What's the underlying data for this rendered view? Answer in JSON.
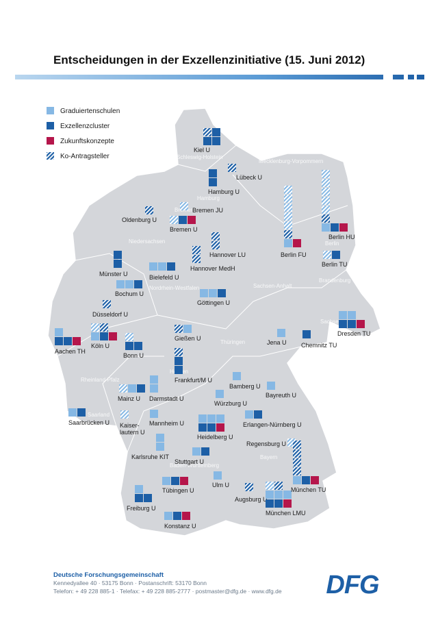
{
  "header": {
    "title": "Entscheidungen in der Exzellenzinitiative (15. Juni 2012)"
  },
  "legend": {
    "items": [
      "Graduiertenschulen",
      "Exzellenzcluster",
      "Zukunftskonzepte",
      "Ko-Antragsteller"
    ]
  },
  "states": [
    "Schleswig-Holstein",
    "Mecklenburg-Vorpommern",
    "Hamburg",
    "Bremen",
    "Niedersachsen",
    "Berlin",
    "Brandenburg",
    "Sachsen-Anhalt",
    "Nordrhein-Westfalen",
    "Hessen",
    "Thüringen",
    "Sachsen",
    "Rheinland-Pfalz",
    "Saarland",
    "Baden-Württemberg",
    "Bayern"
  ],
  "universities": [
    {
      "label": "Kiel U",
      "g": 0,
      "c": 3,
      "z": 0,
      "kg": 0,
      "kc": 1
    },
    {
      "label": "Lübeck U",
      "g": 0,
      "c": 0,
      "z": 0,
      "kg": 0,
      "kc": 1
    },
    {
      "label": "Hamburg U",
      "g": 0,
      "c": 2,
      "z": 0,
      "kg": 0,
      "kc": 0
    },
    {
      "label": "Bremen JU",
      "g": 0,
      "c": 0,
      "z": 0,
      "kg": 1,
      "kc": 0
    },
    {
      "label": "Oldenburg U",
      "g": 0,
      "c": 0,
      "z": 0,
      "kg": 0,
      "kc": 1
    },
    {
      "label": "Bremen U",
      "g": 0,
      "c": 1,
      "z": 1,
      "kg": 1,
      "kc": 0
    },
    {
      "label": "Hannover LU",
      "g": 0,
      "c": 0,
      "z": 0,
      "kg": 0,
      "kc": 2
    },
    {
      "label": "Hannover MedH",
      "g": 0,
      "c": 0,
      "z": 0,
      "kg": 0,
      "kc": 2
    },
    {
      "label": "Münster U",
      "g": 0,
      "c": 2,
      "z": 0,
      "kg": 0,
      "kc": 0
    },
    {
      "label": "Bielefeld U",
      "g": 2,
      "c": 1,
      "z": 0,
      "kg": 0,
      "kc": 0
    },
    {
      "label": "Bochum U",
      "g": 2,
      "c": 1,
      "z": 0,
      "kg": 0,
      "kc": 0
    },
    {
      "label": "Düsseldorf U",
      "g": 0,
      "c": 0,
      "z": 0,
      "kg": 0,
      "kc": 1
    },
    {
      "label": "Göttingen U",
      "g": 2,
      "c": 1,
      "z": 0,
      "kg": 0,
      "kc": 0
    },
    {
      "label": "Aachen TH",
      "g": 1,
      "c": 2,
      "z": 1,
      "kg": 0,
      "kc": 0
    },
    {
      "label": "Köln U",
      "g": 1,
      "c": 1,
      "z": 1,
      "kg": 1,
      "kc": 1
    },
    {
      "label": "Bonn U",
      "g": 0,
      "c": 2,
      "z": 0,
      "kg": 1,
      "kc": 0
    },
    {
      "label": "Gießen U",
      "g": 1,
      "c": 0,
      "z": 0,
      "kg": 0,
      "kc": 1
    },
    {
      "label": "Frankfurt/M U",
      "g": 0,
      "c": 2,
      "z": 0,
      "kg": 0,
      "kc": 1
    },
    {
      "label": "Mainz U",
      "g": 1,
      "c": 1,
      "z": 0,
      "kg": 1,
      "kc": 0
    },
    {
      "label": "Darmstadt U",
      "g": 2,
      "c": 0,
      "z": 0,
      "kg": 0,
      "kc": 0
    },
    {
      "label": "Saarbrücken U",
      "g": 1,
      "c": 1,
      "z": 0,
      "kg": 0,
      "kc": 0
    },
    {
      "label": [
        "Kaiser-",
        "lautern U"
      ],
      "g": 0,
      "c": 0,
      "z": 0,
      "kg": 1,
      "kc": 0
    },
    {
      "label": "Mannheim U",
      "g": 1,
      "c": 0,
      "z": 0,
      "kg": 0,
      "kc": 0
    },
    {
      "label": "Karlsruhe KIT",
      "g": 2,
      "c": 0,
      "z": 0,
      "kg": 0,
      "kc": 0
    },
    {
      "label": "Heidelberg U",
      "g": 3,
      "c": 2,
      "z": 1,
      "kg": 0,
      "kc": 0
    },
    {
      "label": "Würzburg U",
      "g": 1,
      "c": 0,
      "z": 0,
      "kg": 0,
      "kc": 0
    },
    {
      "label": "Bamberg U",
      "g": 1,
      "c": 0,
      "z": 0,
      "kg": 0,
      "kc": 0
    },
    {
      "label": "Bayreuth U",
      "g": 1,
      "c": 0,
      "z": 0,
      "kg": 0,
      "kc": 0
    },
    {
      "label": "Erlangen-Nürnberg U",
      "g": 1,
      "c": 1,
      "z": 0,
      "kg": 0,
      "kc": 0
    },
    {
      "label": "Regensburg U",
      "g": 0,
      "c": 0,
      "z": 0,
      "kg": 1,
      "kc": 0
    },
    {
      "label": "Stuttgart U",
      "g": 1,
      "c": 1,
      "z": 0,
      "kg": 0,
      "kc": 0
    },
    {
      "label": "Tübingen U",
      "g": 1,
      "c": 1,
      "z": 1,
      "kg": 0,
      "kc": 0
    },
    {
      "label": "Ulm U",
      "g": 1,
      "c": 0,
      "z": 0,
      "kg": 0,
      "kc": 0
    },
    {
      "label": "Augsburg U",
      "g": 0,
      "c": 0,
      "z": 0,
      "kg": 0,
      "kc": 1
    },
    {
      "label": "Freiburg U",
      "g": 1,
      "c": 2,
      "z": 0,
      "kg": 0,
      "kc": 0
    },
    {
      "label": "Konstanz U",
      "g": 1,
      "c": 1,
      "z": 1,
      "kg": 0,
      "kc": 0
    },
    {
      "label": "München LMU",
      "g": 3,
      "c": 2,
      "z": 1,
      "kg": 1,
      "kc": 1
    },
    {
      "label": "München TU",
      "g": 1,
      "c": 1,
      "z": 1,
      "kg": 0,
      "kc": 4
    },
    {
      "label": "Dresden TU",
      "g": 2,
      "c": 2,
      "z": 1,
      "kg": 0,
      "kc": 0
    },
    {
      "label": "Chemnitz TU",
      "g": 0,
      "c": 1,
      "z": 0,
      "kg": 0,
      "kc": 0
    },
    {
      "label": "Jena U",
      "g": 1,
      "c": 0,
      "z": 0,
      "kg": 0,
      "kc": 0
    },
    {
      "label": "Berlin FU",
      "g": 1,
      "c": 0,
      "z": 1,
      "kg": 5,
      "kc": 1
    },
    {
      "label": "Berlin HU",
      "g": 1,
      "c": 1,
      "z": 1,
      "kg": 5,
      "kc": 1
    },
    {
      "label": "Berlin TU",
      "g": 0,
      "c": 1,
      "z": 0,
      "kg": 1,
      "kc": 0
    }
  ],
  "footer": {
    "org": "Deutsche Forschungsgemeinschaft",
    "address": "Kennedyallee 40 · 53175 Bonn · Postanschrift: 53170 Bonn",
    "contact": "Telefon: + 49 228 885-1 · Telefax: + 49 228 885-2777 · postmaster@dfg.de · www.dfg.de",
    "logo": "DFG"
  }
}
